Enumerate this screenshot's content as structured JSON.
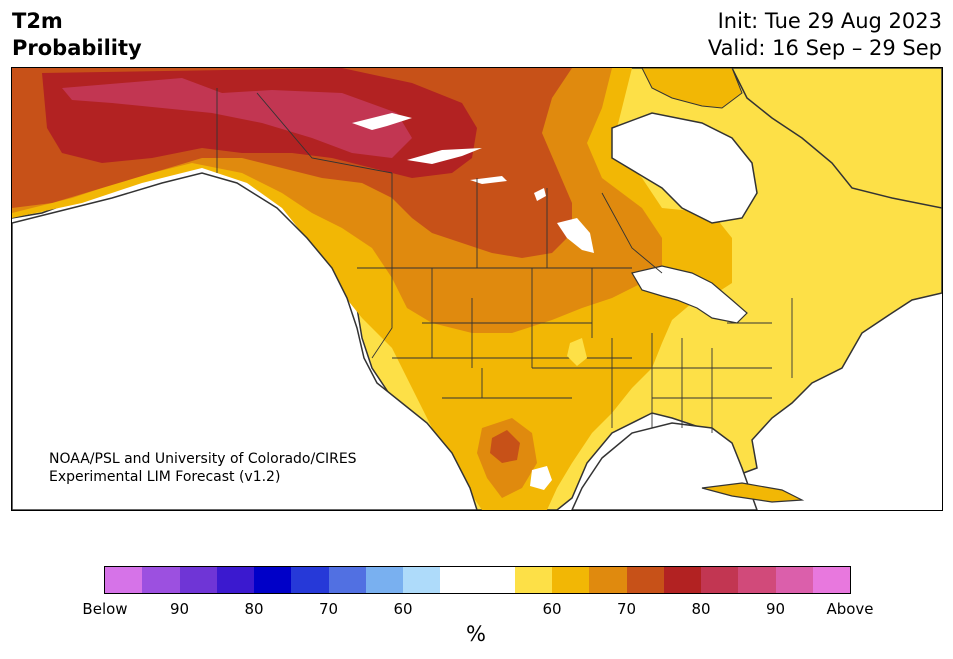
{
  "header": {
    "variable": "T2m",
    "product": "Probability",
    "init": "Init: Tue 29 Aug 2023",
    "valid": "Valid: 16 Sep – 29 Sep"
  },
  "map": {
    "credit_line1": "NOAA/PSL and University of Colorado/CIRES",
    "credit_line2": "Experimental LIM Forecast (v1.2)",
    "category_colors": {
      "above_50_60": "#fde047",
      "above_60_70": "#f2b705",
      "above_70_80": "#e08a0e",
      "above_80_90": "#c75118",
      "above_90": "#b22222",
      "above_extreme": "#c23652",
      "none": "#ffffff",
      "land_outline": "#333333",
      "water": "#ffffff"
    }
  },
  "colorbar": {
    "unit": "%",
    "colors": [
      "#d673e8",
      "#9c50e0",
      "#6f35d6",
      "#3b19cf",
      "#0000c8",
      "#2639d8",
      "#5170e2",
      "#79b0f0",
      "#aedbfa",
      "#ffffff",
      "#ffffff",
      "#fde047",
      "#f2b705",
      "#e08a0e",
      "#c75118",
      "#b22222",
      "#c23652",
      "#d14a7a",
      "#db5fab",
      "#e878de"
    ],
    "tick_labels": [
      "Below",
      "90",
      "80",
      "70",
      "60",
      "60",
      "70",
      "80",
      "90",
      "Above"
    ]
  }
}
